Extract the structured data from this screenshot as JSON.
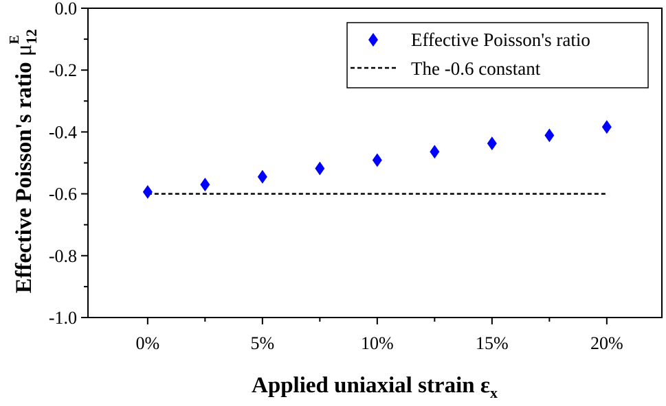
{
  "chart_data": {
    "type": "scatter",
    "title": "",
    "xlabel": "Applied uniaxial strain",
    "xlabel_symbol": "ε",
    "xlabel_subscript": "x",
    "ylabel": "Effective Poisson's ratio",
    "ylabel_symbol": "μ",
    "ylabel_subscript": "12",
    "ylabel_superscript": "E",
    "xlim": [
      -2.6,
      22.4
    ],
    "ylim": [
      -1.0,
      0.0
    ],
    "x_ticks": [
      0,
      5,
      10,
      15,
      20
    ],
    "x_tick_labels": [
      "0%",
      "5%",
      "10%",
      "15%",
      "20%"
    ],
    "x_minor_step": 2.5,
    "y_ticks": [
      0.0,
      -0.2,
      -0.4,
      -0.6,
      -0.8,
      -1.0
    ],
    "y_tick_labels": [
      "0.0",
      "-0.2",
      "-0.4",
      "-0.6",
      "-0.8",
      "-1.0"
    ],
    "y_minor_step": 0.1,
    "grid": false,
    "legend_position": "top-right",
    "series": [
      {
        "name": "Effective Poisson's ratio",
        "marker": "diamond",
        "color": "#0000ff",
        "x": [
          0,
          2.5,
          5,
          7.5,
          10,
          12.5,
          15,
          17.5,
          20
        ],
        "y": [
          -0.594,
          -0.57,
          -0.545,
          -0.518,
          -0.491,
          -0.464,
          -0.437,
          -0.411,
          -0.384
        ]
      },
      {
        "name": "The -0.6 constant",
        "style": "dashed",
        "color": "#000000",
        "x": [
          0,
          20
        ],
        "y": [
          -0.6,
          -0.6
        ]
      }
    ]
  }
}
